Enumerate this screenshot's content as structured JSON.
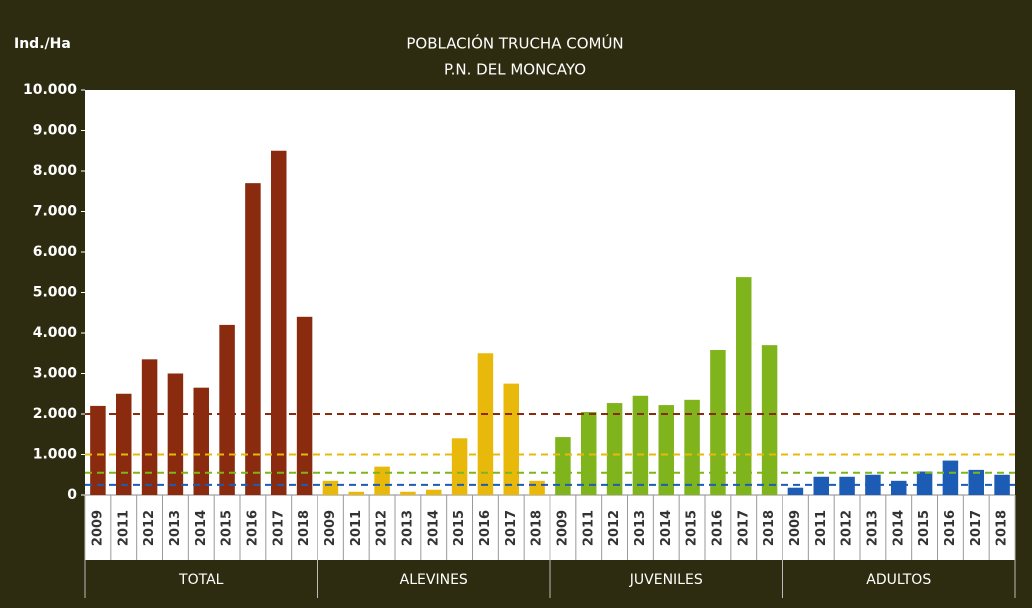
{
  "chart_data": {
    "type": "bar",
    "title": "POBLACIÓN TRUCHA COMÚN",
    "subtitle": "P.N. DEL MONCAYO",
    "y_label": "Ind./Ha",
    "categories": [
      "2009",
      "2011",
      "2012",
      "2013",
      "2014",
      "2015",
      "2016",
      "2017",
      "2018"
    ],
    "series": [
      {
        "name": "TOTAL",
        "color": "#8a2a0e",
        "reference": 2000,
        "values": [
          2200,
          2500,
          3350,
          3000,
          2650,
          4200,
          7700,
          8500,
          4400
        ]
      },
      {
        "name": "ALEVINES",
        "color": "#e8b80a",
        "reference": 1000,
        "values": [
          350,
          80,
          700,
          80,
          130,
          1400,
          3500,
          2750,
          350
        ]
      },
      {
        "name": "JUVENILES",
        "color": "#80b41c",
        "reference": 550,
        "values": [
          1430,
          2050,
          2270,
          2450,
          2220,
          2350,
          3580,
          5380,
          3700
        ]
      },
      {
        "name": "ADULTOS",
        "color": "#1c5cb4",
        "reference": 250,
        "values": [
          180,
          450,
          450,
          500,
          350,
          580,
          850,
          620,
          500
        ]
      }
    ],
    "ylim": [
      0,
      10000
    ],
    "yticks": [
      0,
      {
        "value": 1000,
        "label": "1.000"
      },
      {
        "value": 2000,
        "label": "2.000"
      },
      {
        "value": 3000,
        "label": "3.000"
      },
      {
        "value": 4000,
        "label": "4.000"
      },
      {
        "value": 5000,
        "label": "5.000"
      },
      {
        "value": 6000,
        "label": "6.000"
      },
      {
        "value": 7000,
        "label": "7.000"
      },
      {
        "value": 8000,
        "label": "8.000"
      },
      {
        "value": 9000,
        "label": "9.000"
      },
      {
        "value": 10000,
        "label": "10.000"
      }
    ]
  }
}
